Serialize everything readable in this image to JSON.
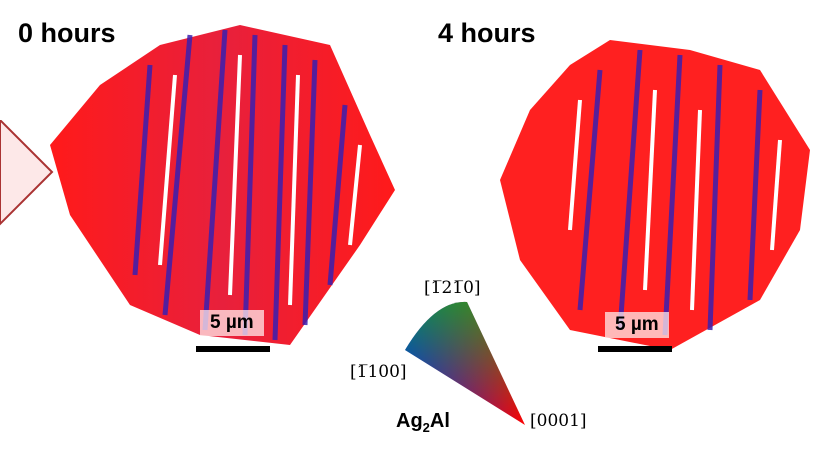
{
  "panels": [
    {
      "title": "0 hours",
      "scale_bar": "5 µm"
    },
    {
      "title": "4 hours",
      "scale_bar": "5 µm"
    }
  ],
  "legend": {
    "directions": [
      "[1̅21̅0]",
      "[1̅100]",
      "[0001]"
    ],
    "material_base": "Ag",
    "material_sub": "2",
    "material_tail": "Al",
    "colors": {
      "top": "#00c800",
      "left": "#1010ff",
      "tip": "#ff0000"
    }
  }
}
